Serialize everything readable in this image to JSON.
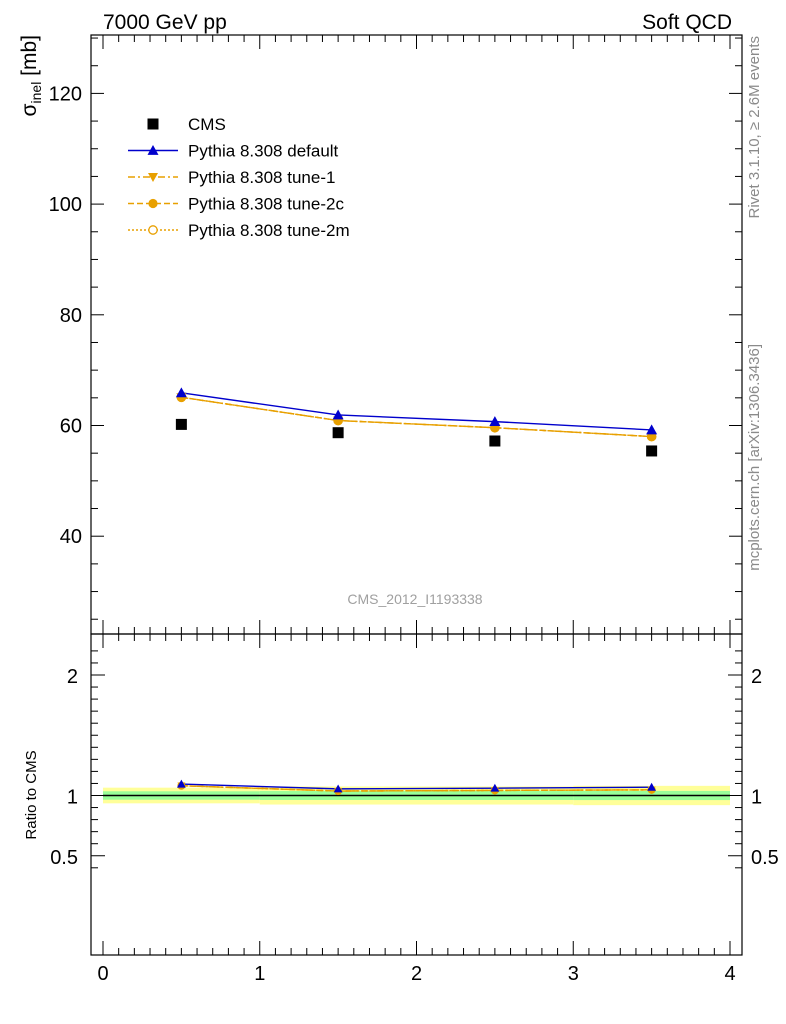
{
  "header": {
    "left": "7000 GeV pp",
    "right": "Soft QCD"
  },
  "side": {
    "rivet": "Rivet 3.1.10, ≥ 2.6M events",
    "mcplots": "mcplots.cern.ch [arXiv:1306.3436]"
  },
  "watermark": "CMS_2012_I1193338",
  "colors": {
    "cms": "#000000",
    "default": "#0000cc",
    "tune": "#e8a000",
    "band_inner": "#99ff99",
    "band_outer": "#ffff99"
  },
  "chart_data": [
    {
      "type": "scatter",
      "panel": "main",
      "ylabel_main": "σ",
      "ylabel_sub": "inel",
      "ylabel_unit": " [mb]",
      "xlim": [
        0,
        4
      ],
      "ylim": [
        23,
        131
      ],
      "yticks": [
        40,
        60,
        80,
        100,
        120
      ],
      "legend_placement": "top-left",
      "x": [
        0.5,
        1.5,
        2.5,
        3.5
      ],
      "series": [
        {
          "name": "CMS",
          "key": "cms",
          "values": [
            60.2,
            58.7,
            57.2,
            55.4
          ]
        },
        {
          "name": "Pythia 8.308 default",
          "key": "default",
          "values": [
            65.9,
            61.9,
            60.7,
            59.2
          ]
        },
        {
          "name": "Pythia 8.308 tune-1",
          "key": "tune1",
          "values": [
            65.1,
            60.9,
            59.6,
            58.0
          ]
        },
        {
          "name": "Pythia 8.308 tune-2c",
          "key": "tune2c",
          "values": [
            65.1,
            60.9,
            59.6,
            58.0
          ]
        },
        {
          "name": "Pythia 8.308 tune-2m",
          "key": "tune2m",
          "values": [
            65.1,
            60.9,
            59.6,
            58.0
          ]
        }
      ]
    },
    {
      "type": "line",
      "panel": "ratio",
      "ylabel": "Ratio to CMS",
      "xlim": [
        0,
        4
      ],
      "ylim": [
        0.35,
        2.25
      ],
      "yticks": [
        0.5,
        1,
        2
      ],
      "ytick_labels": [
        "0.5",
        "1",
        "2"
      ],
      "xticks": [
        0,
        1,
        2,
        3,
        4
      ],
      "xtick_labels": [
        "0",
        "1",
        "2",
        "3",
        "4"
      ],
      "x": [
        0.5,
        1.5,
        2.5,
        3.5
      ],
      "bands": [
        {
          "x0": 0,
          "x1": 1,
          "inner": [
            0.965,
            1.035
          ],
          "outer": [
            0.935,
            1.065
          ]
        },
        {
          "x0": 1,
          "x1": 2,
          "inner": [
            0.963,
            1.037
          ],
          "outer": [
            0.925,
            1.075
          ]
        },
        {
          "x0": 2,
          "x1": 3,
          "inner": [
            0.963,
            1.037
          ],
          "outer": [
            0.925,
            1.075
          ]
        },
        {
          "x0": 3,
          "x1": 4,
          "inner": [
            0.962,
            1.038
          ],
          "outer": [
            0.92,
            1.08
          ]
        }
      ],
      "series": [
        {
          "name": "Pythia 8.308 default",
          "key": "default",
          "values": [
            1.095,
            1.055,
            1.061,
            1.069
          ]
        },
        {
          "name": "Pythia 8.308 tune-1",
          "key": "tune1",
          "values": [
            1.081,
            1.037,
            1.042,
            1.047
          ]
        },
        {
          "name": "Pythia 8.308 tune-2c",
          "key": "tune2c",
          "values": [
            1.081,
            1.037,
            1.042,
            1.047
          ]
        },
        {
          "name": "Pythia 8.308 tune-2m",
          "key": "tune2m",
          "values": [
            1.081,
            1.037,
            1.042,
            1.047
          ]
        }
      ]
    }
  ]
}
